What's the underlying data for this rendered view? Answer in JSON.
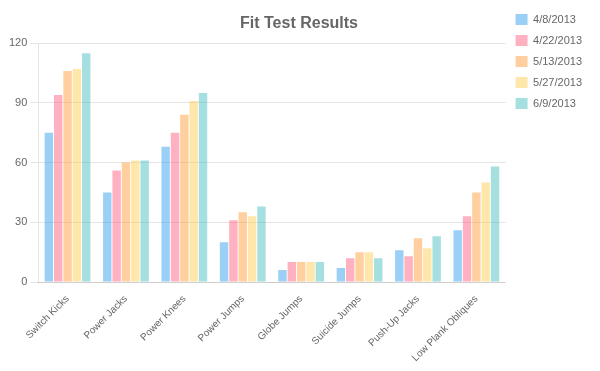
{
  "chart_data": {
    "type": "bar",
    "title": "Fit Test Results",
    "categories": [
      "Switch Kicks",
      "Power Jacks",
      "Power Knees",
      "Power Jumps",
      "Globe Jumps",
      "Suicide Jumps",
      "Push-Up Jacks",
      "Low Plank Obliques"
    ],
    "series": [
      {
        "name": "4/8/2013",
        "values": [
          75,
          45,
          68,
          20,
          6,
          7,
          16,
          26
        ]
      },
      {
        "name": "4/22/2013",
        "values": [
          94,
          56,
          75,
          31,
          10,
          12,
          13,
          33
        ]
      },
      {
        "name": "5/13/2013",
        "values": [
          106,
          60,
          84,
          35,
          10,
          15,
          22,
          45
        ]
      },
      {
        "name": "5/27/2013",
        "values": [
          107,
          61,
          91,
          33,
          10,
          15,
          17,
          50
        ]
      },
      {
        "name": "6/9/2013",
        "values": [
          115,
          61,
          95,
          38,
          10,
          12,
          23,
          58
        ]
      }
    ],
    "ylim": [
      0,
      120
    ],
    "yticks": [
      0,
      30,
      60,
      90,
      120
    ],
    "grid": true,
    "legend": "right"
  }
}
